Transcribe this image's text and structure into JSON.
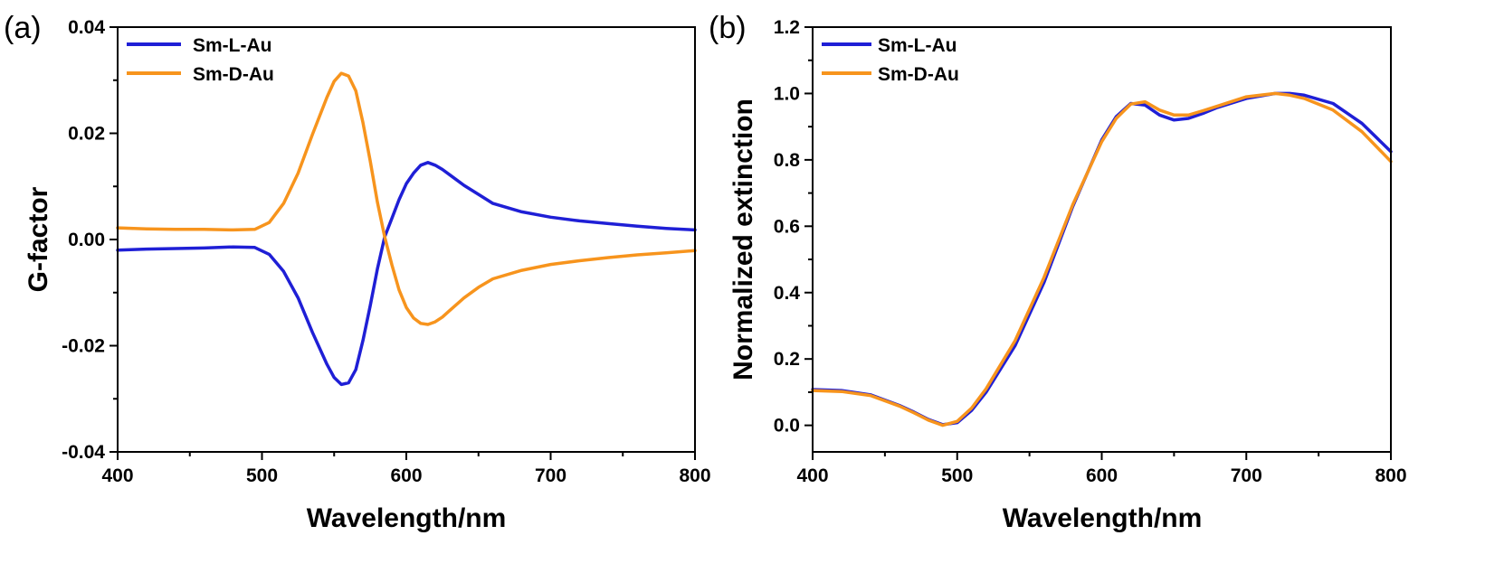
{
  "chart_data": [
    {
      "panel": "(a)",
      "type": "line",
      "xlabel": "Wavelength/nm",
      "ylabel": "G-factor",
      "xlim": [
        400,
        800
      ],
      "ylim": [
        -0.04,
        0.04
      ],
      "x_ticks": [
        "400",
        "500",
        "600",
        "700",
        "800"
      ],
      "y_ticks": [
        "-0.04",
        "-0.02",
        "0.00",
        "0.02",
        "0.04"
      ],
      "legend_position": "top-left",
      "grid": false,
      "x": [
        400,
        420,
        440,
        460,
        480,
        495,
        505,
        515,
        525,
        535,
        545,
        550,
        555,
        560,
        565,
        570,
        575,
        580,
        585,
        590,
        595,
        600,
        605,
        610,
        615,
        620,
        625,
        630,
        640,
        650,
        660,
        680,
        700,
        720,
        740,
        760,
        780,
        800
      ],
      "series": [
        {
          "name": "Sm-L-Au",
          "color": "#1f1fd6",
          "values": [
            -0.002,
            -0.0018,
            -0.0017,
            -0.0016,
            -0.0014,
            -0.0015,
            -0.0028,
            -0.006,
            -0.011,
            -0.0175,
            -0.0235,
            -0.026,
            -0.0273,
            -0.027,
            -0.0245,
            -0.019,
            -0.0125,
            -0.0055,
            0.0005,
            0.004,
            0.0075,
            0.0105,
            0.0125,
            0.014,
            0.0145,
            0.014,
            0.0132,
            0.0122,
            0.0102,
            0.0085,
            0.0068,
            0.0052,
            0.0042,
            0.0035,
            0.003,
            0.0025,
            0.0021,
            0.0018
          ]
        },
        {
          "name": "Sm-D-Au",
          "color": "#f7941d",
          "values": [
            0.0022,
            0.002,
            0.0019,
            0.0019,
            0.0018,
            0.0019,
            0.0032,
            0.0068,
            0.0125,
            0.0198,
            0.0268,
            0.0298,
            0.0313,
            0.0308,
            0.028,
            0.022,
            0.0148,
            0.007,
            0.0005,
            -0.0048,
            -0.0095,
            -0.0128,
            -0.0148,
            -0.0158,
            -0.016,
            -0.0155,
            -0.0146,
            -0.0134,
            -0.011,
            -0.009,
            -0.0074,
            -0.0058,
            -0.0047,
            -0.004,
            -0.0034,
            -0.0029,
            -0.0025,
            -0.0021
          ]
        }
      ]
    },
    {
      "panel": "(b)",
      "type": "line",
      "xlabel": "Wavelength/nm",
      "ylabel": "Normalized extinction",
      "xlim": [
        400,
        800
      ],
      "ylim": [
        -0.08,
        1.2
      ],
      "x_ticks": [
        "400",
        "500",
        "600",
        "700",
        "800"
      ],
      "y_ticks": [
        "0.0",
        "0.2",
        "0.4",
        "0.6",
        "0.8",
        "1.0",
        "1.2"
      ],
      "legend_position": "top-left",
      "grid": false,
      "x": [
        400,
        420,
        440,
        460,
        470,
        480,
        490,
        500,
        510,
        520,
        540,
        560,
        580,
        600,
        610,
        620,
        630,
        640,
        650,
        660,
        670,
        680,
        700,
        720,
        730,
        740,
        760,
        780,
        800
      ],
      "series": [
        {
          "name": "Sm-L-Au",
          "color": "#1f1fd6",
          "values": [
            0.108,
            0.105,
            0.092,
            0.06,
            0.04,
            0.018,
            0.002,
            0.008,
            0.045,
            0.1,
            0.24,
            0.43,
            0.66,
            0.86,
            0.93,
            0.97,
            0.965,
            0.935,
            0.92,
            0.925,
            0.94,
            0.958,
            0.985,
            1.0,
            1.0,
            0.995,
            0.97,
            0.91,
            0.825
          ]
        },
        {
          "name": "Sm-D-Au",
          "color": "#f7941d",
          "values": [
            0.105,
            0.102,
            0.09,
            0.058,
            0.038,
            0.016,
            0.0,
            0.012,
            0.052,
            0.11,
            0.255,
            0.445,
            0.665,
            0.855,
            0.925,
            0.968,
            0.975,
            0.95,
            0.935,
            0.935,
            0.948,
            0.962,
            0.99,
            1.0,
            0.995,
            0.985,
            0.95,
            0.885,
            0.795
          ]
        }
      ]
    }
  ]
}
